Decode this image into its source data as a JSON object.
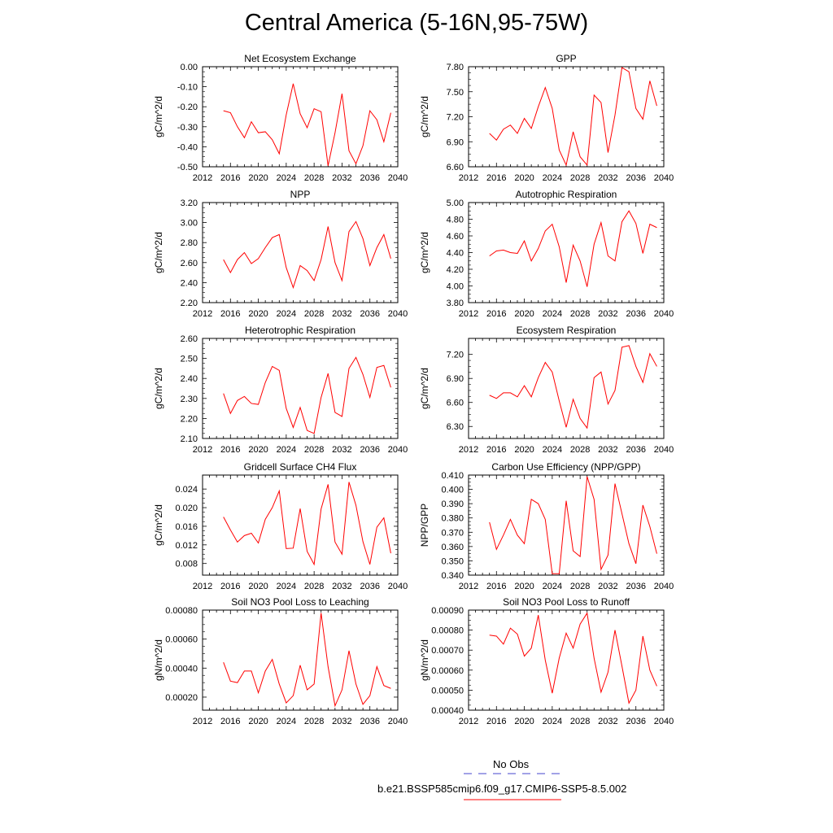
{
  "title": "Central America (5-16N,95-75W)",
  "line_color": "#ff0000",
  "obs_color": "#4444cc",
  "legend": {
    "obs_label": "No Obs",
    "model_label": "b.e21.BSSP585cmip6.f09_g17.CMIP6-SSP5-8.5.002"
  },
  "chart_data": [
    {
      "type": "line",
      "title": "Net Ecosystem Exchange",
      "ylabel": "gC/m^2/d",
      "xlim": [
        2012,
        2040
      ],
      "ylim": [
        -0.5,
        0.0
      ],
      "xticks": [
        "2012",
        "2016",
        "2020",
        "2024",
        "2028",
        "2032",
        "2036",
        "2040"
      ],
      "yticks": [
        "0.00",
        "-0.10",
        "-0.20",
        "-0.30",
        "-0.40",
        "-0.50"
      ],
      "yticks_values": [
        0.0,
        -0.1,
        -0.2,
        -0.3,
        -0.4,
        -0.5
      ],
      "x": [
        2015,
        2016,
        2017,
        2018,
        2019,
        2020,
        2021,
        2022,
        2023,
        2024,
        2025,
        2026,
        2027,
        2028,
        2029,
        2030,
        2031,
        2032,
        2033,
        2034,
        2035,
        2036,
        2037,
        2038,
        2039
      ],
      "values": [
        -0.22,
        -0.23,
        -0.3,
        -0.355,
        -0.275,
        -0.33,
        -0.325,
        -0.365,
        -0.435,
        -0.24,
        -0.085,
        -0.235,
        -0.305,
        -0.21,
        -0.225,
        -0.495,
        -0.33,
        -0.135,
        -0.42,
        -0.485,
        -0.395,
        -0.22,
        -0.265,
        -0.375,
        -0.23
      ]
    },
    {
      "type": "line",
      "title": "GPP",
      "ylabel": "gC/m^2/d",
      "xlim": [
        2012,
        2040
      ],
      "ylim": [
        6.6,
        7.8
      ],
      "xticks": [
        "2012",
        "2016",
        "2020",
        "2024",
        "2028",
        "2032",
        "2036",
        "2040"
      ],
      "yticks": [
        "7.80",
        "7.50",
        "7.20",
        "6.90",
        "6.60"
      ],
      "yticks_values": [
        7.8,
        7.5,
        7.2,
        6.9,
        6.6
      ],
      "x": [
        2015,
        2016,
        2017,
        2018,
        2019,
        2020,
        2021,
        2022,
        2023,
        2024,
        2025,
        2026,
        2027,
        2028,
        2029,
        2030,
        2031,
        2032,
        2033,
        2034,
        2035,
        2036,
        2037,
        2038,
        2039
      ],
      "values": [
        7.0,
        6.92,
        7.05,
        7.1,
        7.0,
        7.18,
        7.06,
        7.32,
        7.55,
        7.3,
        6.8,
        6.62,
        7.02,
        6.72,
        6.62,
        7.46,
        7.37,
        6.77,
        7.22,
        7.79,
        7.74,
        7.3,
        7.17,
        7.63,
        7.33
      ]
    },
    {
      "type": "line",
      "title": "NPP",
      "ylabel": "gC/m^2/d",
      "xlim": [
        2012,
        2040
      ],
      "ylim": [
        2.2,
        3.2
      ],
      "xticks": [
        "2012",
        "2016",
        "2020",
        "2024",
        "2028",
        "2032",
        "2036",
        "2040"
      ],
      "yticks": [
        "3.20",
        "3.00",
        "2.80",
        "2.60",
        "2.40",
        "2.20"
      ],
      "yticks_values": [
        3.2,
        3.0,
        2.8,
        2.6,
        2.4,
        2.2
      ],
      "x": [
        2015,
        2016,
        2017,
        2018,
        2019,
        2020,
        2021,
        2022,
        2023,
        2024,
        2025,
        2026,
        2027,
        2028,
        2029,
        2030,
        2031,
        2032,
        2033,
        2034,
        2035,
        2036,
        2037,
        2038,
        2039
      ],
      "values": [
        2.63,
        2.5,
        2.63,
        2.7,
        2.59,
        2.64,
        2.75,
        2.85,
        2.88,
        2.55,
        2.35,
        2.57,
        2.52,
        2.42,
        2.63,
        2.96,
        2.6,
        2.42,
        2.91,
        3.01,
        2.84,
        2.57,
        2.75,
        2.88,
        2.64
      ]
    },
    {
      "type": "line",
      "title": "Autotrophic Respiration",
      "ylabel": "gC/m^2/d",
      "xlim": [
        2012,
        2040
      ],
      "ylim": [
        3.8,
        5.0
      ],
      "xticks": [
        "2012",
        "2016",
        "2020",
        "2024",
        "2028",
        "2032",
        "2036",
        "2040"
      ],
      "yticks": [
        "5.00",
        "4.80",
        "4.60",
        "4.40",
        "4.20",
        "4.00",
        "3.80"
      ],
      "yticks_values": [
        5.0,
        4.8,
        4.6,
        4.4,
        4.2,
        4.0,
        3.8
      ],
      "x": [
        2015,
        2016,
        2017,
        2018,
        2019,
        2020,
        2021,
        2022,
        2023,
        2024,
        2025,
        2026,
        2027,
        2028,
        2029,
        2030,
        2031,
        2032,
        2033,
        2034,
        2035,
        2036,
        2037,
        2038,
        2039
      ],
      "values": [
        4.36,
        4.42,
        4.43,
        4.4,
        4.39,
        4.54,
        4.3,
        4.45,
        4.66,
        4.74,
        4.47,
        4.04,
        4.49,
        4.3,
        3.99,
        4.5,
        4.76,
        4.36,
        4.3,
        4.77,
        4.9,
        4.75,
        4.39,
        4.74,
        4.7
      ]
    },
    {
      "type": "line",
      "title": "Heterotrophic Respiration",
      "ylabel": "gC/m^2/d",
      "xlim": [
        2012,
        2040
      ],
      "ylim": [
        2.1,
        2.6
      ],
      "xticks": [
        "2012",
        "2016",
        "2020",
        "2024",
        "2028",
        "2032",
        "2036",
        "2040"
      ],
      "yticks": [
        "2.60",
        "2.50",
        "2.40",
        "2.30",
        "2.20",
        "2.10"
      ],
      "yticks_values": [
        2.6,
        2.5,
        2.4,
        2.3,
        2.2,
        2.1
      ],
      "x": [
        2015,
        2016,
        2017,
        2018,
        2019,
        2020,
        2021,
        2022,
        2023,
        2024,
        2025,
        2026,
        2027,
        2028,
        2029,
        2030,
        2031,
        2032,
        2033,
        2034,
        2035,
        2036,
        2037,
        2038,
        2039
      ],
      "values": [
        2.325,
        2.225,
        2.29,
        2.31,
        2.275,
        2.27,
        2.38,
        2.46,
        2.44,
        2.25,
        2.155,
        2.255,
        2.14,
        2.125,
        2.305,
        2.425,
        2.23,
        2.21,
        2.45,
        2.505,
        2.42,
        2.305,
        2.455,
        2.465,
        2.355
      ]
    },
    {
      "type": "line",
      "title": "Ecosystem Respiration",
      "ylabel": "gC/m^2/d",
      "xlim": [
        2012,
        2040
      ],
      "ylim": [
        6.15,
        7.4
      ],
      "xticks": [
        "2012",
        "2016",
        "2020",
        "2024",
        "2028",
        "2032",
        "2036",
        "2040"
      ],
      "yticks": [
        "7.20",
        "6.90",
        "6.60",
        "6.30"
      ],
      "yticks_values": [
        7.2,
        6.9,
        6.6,
        6.3
      ],
      "x": [
        2015,
        2016,
        2017,
        2018,
        2019,
        2020,
        2021,
        2022,
        2023,
        2024,
        2025,
        2026,
        2027,
        2028,
        2029,
        2030,
        2031,
        2032,
        2033,
        2034,
        2035,
        2036,
        2037,
        2038,
        2039
      ],
      "values": [
        6.69,
        6.65,
        6.72,
        6.72,
        6.67,
        6.81,
        6.67,
        6.91,
        7.1,
        6.98,
        6.62,
        6.29,
        6.64,
        6.4,
        6.28,
        6.91,
        6.98,
        6.58,
        6.75,
        7.29,
        7.31,
        7.05,
        6.85,
        7.21,
        7.05
      ]
    },
    {
      "type": "line",
      "title": "Gridcell Surface CH4 Flux",
      "ylabel": "gC/m^2/d",
      "xlim": [
        2012,
        2040
      ],
      "ylim": [
        0.0055,
        0.027
      ],
      "xticks": [
        "2012",
        "2016",
        "2020",
        "2024",
        "2028",
        "2032",
        "2036",
        "2040"
      ],
      "yticks": [
        "0.024",
        "0.020",
        "0.016",
        "0.012",
        "0.008"
      ],
      "yticks_values": [
        0.024,
        0.02,
        0.016,
        0.012,
        0.008
      ],
      "x": [
        2015,
        2016,
        2017,
        2018,
        2019,
        2020,
        2021,
        2022,
        2023,
        2024,
        2025,
        2026,
        2027,
        2028,
        2029,
        2030,
        2031,
        2032,
        2033,
        2034,
        2035,
        2036,
        2037,
        2038,
        2039
      ],
      "values": [
        0.018,
        0.0152,
        0.0126,
        0.014,
        0.0145,
        0.0124,
        0.0175,
        0.02,
        0.0236,
        0.0112,
        0.0113,
        0.0198,
        0.0106,
        0.0078,
        0.0197,
        0.025,
        0.0126,
        0.01,
        0.0255,
        0.0205,
        0.0127,
        0.0078,
        0.0158,
        0.0178,
        0.0102
      ]
    },
    {
      "type": "line",
      "title": "Carbon Use Efficiency (NPP/GPP)",
      "ylabel": "NPP/GPP",
      "xlim": [
        2012,
        2040
      ],
      "ylim": [
        0.34,
        0.41
      ],
      "xticks": [
        "2012",
        "2016",
        "2020",
        "2024",
        "2028",
        "2032",
        "2036",
        "2040"
      ],
      "yticks": [
        "0.410",
        "0.400",
        "0.390",
        "0.380",
        "0.370",
        "0.360",
        "0.350",
        "0.340"
      ],
      "yticks_values": [
        0.41,
        0.4,
        0.39,
        0.38,
        0.37,
        0.36,
        0.35,
        0.34
      ],
      "x": [
        2015,
        2016,
        2017,
        2018,
        2019,
        2020,
        2021,
        2022,
        2023,
        2024,
        2025,
        2026,
        2027,
        2028,
        2029,
        2030,
        2031,
        2032,
        2033,
        2034,
        2035,
        2036,
        2037,
        2038,
        2039
      ],
      "values": [
        0.377,
        0.358,
        0.368,
        0.379,
        0.368,
        0.362,
        0.393,
        0.39,
        0.379,
        0.341,
        0.341,
        0.392,
        0.357,
        0.353,
        0.409,
        0.393,
        0.344,
        0.354,
        0.404,
        0.383,
        0.362,
        0.348,
        0.389,
        0.374,
        0.355
      ]
    },
    {
      "type": "line",
      "title": "Soil NO3 Pool Loss to Leaching",
      "ylabel": "gN/m^2/d",
      "xlim": [
        2012,
        2040
      ],
      "ylim": [
        0.00011,
        0.0008
      ],
      "xticks": [
        "2012",
        "2016",
        "2020",
        "2024",
        "2028",
        "2032",
        "2036",
        "2040"
      ],
      "yticks": [
        "0.00080",
        "0.00060",
        "0.00040",
        "0.00020"
      ],
      "yticks_values": [
        0.0008,
        0.0006,
        0.0004,
        0.0002
      ],
      "x": [
        2015,
        2016,
        2017,
        2018,
        2019,
        2020,
        2021,
        2022,
        2023,
        2024,
        2025,
        2026,
        2027,
        2028,
        2029,
        2030,
        2031,
        2032,
        2033,
        2034,
        2035,
        2036,
        2037,
        2038,
        2039
      ],
      "values": [
        0.00044,
        0.00031,
        0.0003,
        0.00038,
        0.00038,
        0.00023,
        0.00038,
        0.00046,
        0.00029,
        0.00016,
        0.00021,
        0.00042,
        0.00025,
        0.00029,
        0.00078,
        0.00041,
        0.00014,
        0.00025,
        0.00052,
        0.00029,
        0.00015,
        0.00021,
        0.00041,
        0.00028,
        0.00026
      ]
    },
    {
      "type": "line",
      "title": "Soil NO3 Pool Loss to Runoff",
      "ylabel": "gN/m^2/d",
      "xlim": [
        2012,
        2040
      ],
      "ylim": [
        0.0004,
        0.0009
      ],
      "xticks": [
        "2012",
        "2016",
        "2020",
        "2024",
        "2028",
        "2032",
        "2036",
        "2040"
      ],
      "yticks": [
        "0.00090",
        "0.00080",
        "0.00070",
        "0.00060",
        "0.00050",
        "0.00040"
      ],
      "yticks_values": [
        0.0009,
        0.0008,
        0.0007,
        0.0006,
        0.0005,
        0.0004
      ],
      "x": [
        2015,
        2016,
        2017,
        2018,
        2019,
        2020,
        2021,
        2022,
        2023,
        2024,
        2025,
        2026,
        2027,
        2028,
        2029,
        2030,
        2031,
        2032,
        2033,
        2034,
        2035,
        2036,
        2037,
        2038,
        2039
      ],
      "values": [
        0.000775,
        0.00077,
        0.00073,
        0.00081,
        0.00078,
        0.00067,
        0.00071,
        0.000875,
        0.00065,
        0.000485,
        0.00066,
        0.000785,
        0.00071,
        0.00083,
        0.000885,
        0.00066,
        0.00049,
        0.00059,
        0.0008,
        0.00062,
        0.000435,
        0.0005,
        0.00077,
        0.0006,
        0.00052
      ]
    }
  ]
}
